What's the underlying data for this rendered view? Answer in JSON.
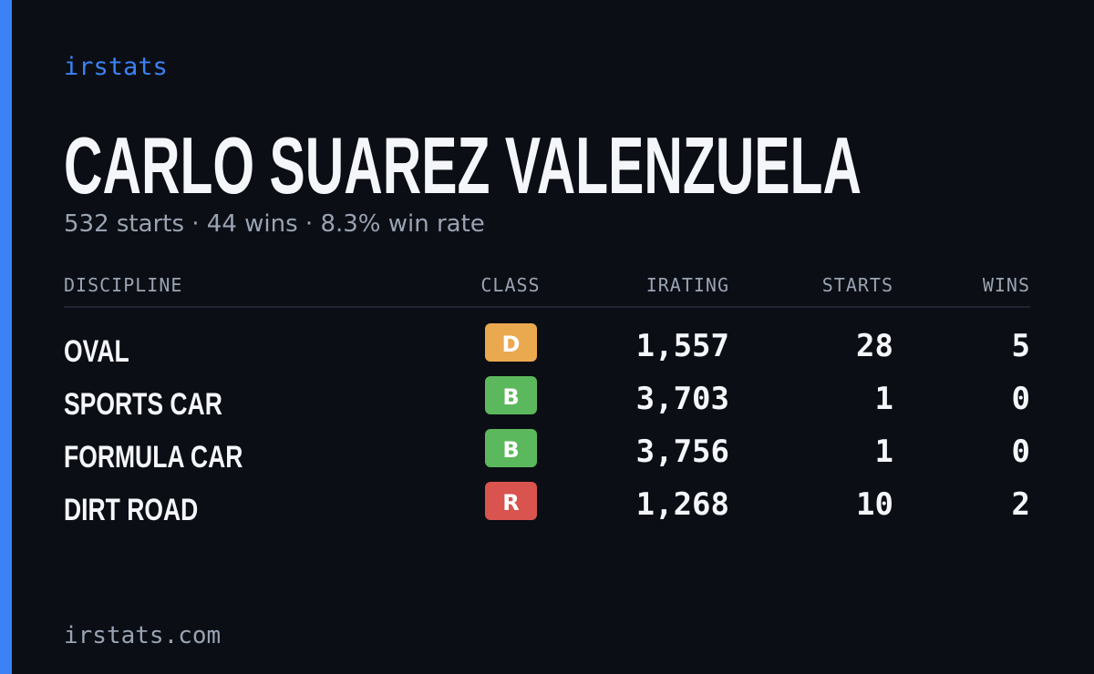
{
  "header": {
    "brand": "irstats",
    "name": "CARLO SUAREZ VALENZUELA",
    "summary": "532 starts · 44 wins · 8.3% win rate"
  },
  "table": {
    "columns": [
      "DISCIPLINE",
      "CLASS",
      "IRATING",
      "STARTS",
      "WINS"
    ],
    "rows": [
      {
        "discipline": "OVAL",
        "class": "D",
        "class_color": "#eaa94f",
        "irating": "1,557",
        "starts": "28",
        "wins": "5"
      },
      {
        "discipline": "SPORTS CAR",
        "class": "B",
        "class_color": "#5cb85c",
        "irating": "3,703",
        "starts": "1",
        "wins": "0"
      },
      {
        "discipline": "FORMULA CAR",
        "class": "B",
        "class_color": "#5cb85c",
        "irating": "3,756",
        "starts": "1",
        "wins": "0"
      },
      {
        "discipline": "DIRT ROAD",
        "class": "R",
        "class_color": "#d9534f",
        "irating": "1,268",
        "starts": "10",
        "wins": "2"
      }
    ]
  },
  "footer": {
    "site": "irstats.com"
  }
}
